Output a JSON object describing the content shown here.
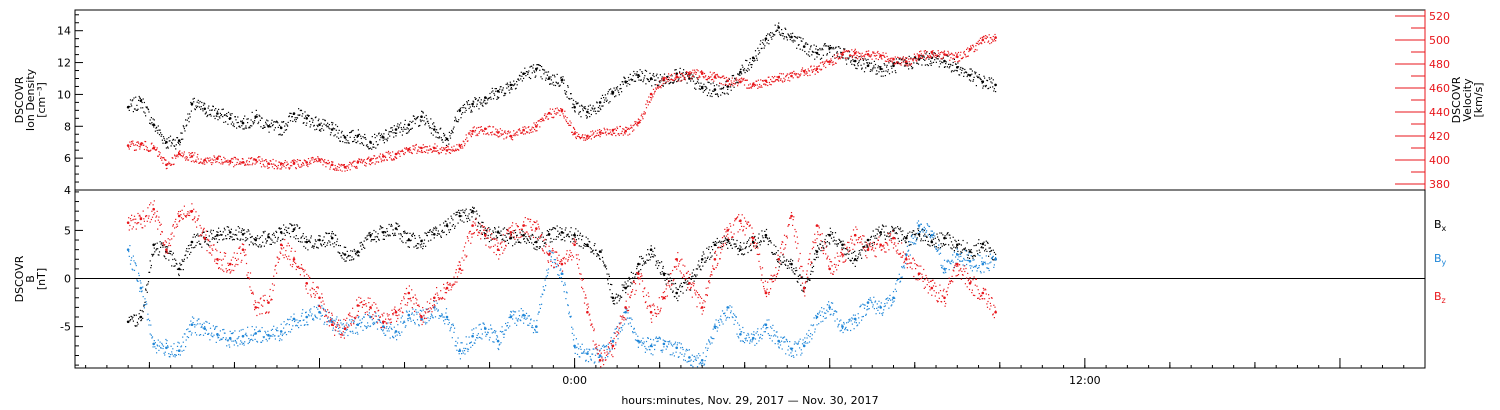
{
  "chart_data": [
    {
      "type": "scatter",
      "panel": "plasma",
      "ylabel_lines": [
        "DSCOVR",
        "Ion Density",
        "[cm⁻³]"
      ],
      "y2label_lines": [
        "DSCOVR",
        "Velocity",
        "[km/s]"
      ],
      "ylim": [
        4,
        15.3
      ],
      "y2lim": [
        375,
        525
      ],
      "yticks": [
        4,
        6,
        8,
        10,
        12,
        14
      ],
      "y2ticks": [
        380,
        400,
        420,
        440,
        460,
        480,
        500,
        520
      ],
      "colors": {
        "density": "#000000",
        "velocity": "#e8161b"
      },
      "series": [
        {
          "key": "density",
          "axis": "left",
          "x": [
            -10.5,
            -10.2,
            -9.9,
            -9.6,
            -9.3,
            -9.0,
            -8.7,
            -8.4,
            -8.1,
            -7.8,
            -7.5,
            -7.2,
            -6.9,
            -6.6,
            -6.3,
            -6.0,
            -5.7,
            -5.4,
            -5.1,
            -4.8,
            -4.5,
            -4.2,
            -3.9,
            -3.6,
            -3.3,
            -3.0,
            -2.7,
            -2.4,
            -2.1,
            -1.8,
            -1.5,
            -1.2,
            -0.9,
            -0.6,
            -0.3,
            0.0,
            0.3,
            0.6,
            0.9,
            1.2,
            1.5,
            1.8,
            2.1,
            2.4,
            2.7,
            3.0,
            3.3,
            3.6,
            3.9,
            4.2,
            4.5,
            4.8,
            5.1,
            5.4,
            5.7,
            6.0,
            6.3,
            6.6,
            6.9,
            7.2,
            7.5,
            7.8,
            8.1,
            8.4,
            8.7,
            9.0,
            9.3,
            9.6,
            9.9
          ],
          "values": [
            9.2,
            9.6,
            8.1,
            7.0,
            7.1,
            9.4,
            9.1,
            8.8,
            8.5,
            8.2,
            8.6,
            8.0,
            7.9,
            8.8,
            8.5,
            8.1,
            7.8,
            7.3,
            7.4,
            7.0,
            7.3,
            7.8,
            8.1,
            8.6,
            7.8,
            7.2,
            9.0,
            9.4,
            9.8,
            10.2,
            10.6,
            11.3,
            11.6,
            11.0,
            10.9,
            9.2,
            8.9,
            9.5,
            10.1,
            10.8,
            11.2,
            11.0,
            10.9,
            11.3,
            11.0,
            10.4,
            10.3,
            10.5,
            11.4,
            12.3,
            13.5,
            14.2,
            13.6,
            13.0,
            12.6,
            12.9,
            12.5,
            12.1,
            11.8,
            11.6,
            11.8,
            12.0,
            12.2,
            12.3,
            12.1,
            11.7,
            11.2,
            10.8,
            10.6
          ]
        },
        {
          "key": "velocity",
          "axis": "right",
          "x": [
            -10.5,
            -10.2,
            -9.9,
            -9.6,
            -9.3,
            -9.0,
            -8.7,
            -8.4,
            -8.1,
            -7.8,
            -7.5,
            -7.2,
            -6.9,
            -6.6,
            -6.3,
            -6.0,
            -5.7,
            -5.4,
            -5.1,
            -4.8,
            -4.5,
            -4.2,
            -3.9,
            -3.6,
            -3.3,
            -3.0,
            -2.7,
            -2.4,
            -2.1,
            -1.8,
            -1.5,
            -1.2,
            -0.9,
            -0.6,
            -0.3,
            0.0,
            0.3,
            0.6,
            0.9,
            1.2,
            1.5,
            1.8,
            2.1,
            2.4,
            2.7,
            3.0,
            3.3,
            3.6,
            3.9,
            4.2,
            4.5,
            4.8,
            5.1,
            5.4,
            5.7,
            6.0,
            6.3,
            6.6,
            6.9,
            7.2,
            7.5,
            7.8,
            8.1,
            8.4,
            8.7,
            9.0,
            9.3,
            9.6,
            9.9
          ],
          "values": [
            412,
            413,
            410,
            396,
            405,
            403,
            400,
            401,
            399,
            398,
            400,
            397,
            397,
            397,
            398,
            400,
            396,
            394,
            398,
            400,
            403,
            405,
            409,
            410,
            410,
            408,
            412,
            424,
            426,
            423,
            420,
            425,
            428,
            439,
            441,
            422,
            420,
            423,
            425,
            424,
            431,
            455,
            468,
            469,
            472,
            472,
            469,
            466,
            465,
            463,
            466,
            469,
            470,
            474,
            476,
            482,
            488,
            489,
            488,
            487,
            484,
            482,
            487,
            490,
            488,
            486,
            492,
            500,
            502
          ]
        }
      ]
    },
    {
      "type": "scatter",
      "panel": "magnetic",
      "ylabel_lines": [
        "DSCOVR",
        "B",
        "[nT]"
      ],
      "ylim": [
        -9.3,
        9.2
      ],
      "yticks": [
        -5,
        0,
        5
      ],
      "zero_line": true,
      "x_axis": {
        "xlim": [
          -11.75,
          20.0
        ],
        "tick_labels": [
          {
            "x": 0,
            "label": "0:00"
          },
          {
            "x": 12,
            "label": "12:00"
          }
        ],
        "xlabel": "hours:minutes, Nov. 29, 2017 — Nov. 30, 2017"
      },
      "legend": [
        "B",
        "B",
        "B"
      ],
      "legend_subscripts": [
        "x",
        "y",
        "z"
      ],
      "colors": {
        "Bx": "#000000",
        "By": "#1f86d8",
        "Bz": "#e8161b"
      },
      "series": [
        {
          "key": "Bx",
          "x": [
            -10.5,
            -10.2,
            -9.9,
            -9.6,
            -9.3,
            -9.0,
            -8.7,
            -8.4,
            -8.1,
            -7.8,
            -7.5,
            -7.2,
            -6.9,
            -6.6,
            -6.3,
            -6.0,
            -5.7,
            -5.4,
            -5.1,
            -4.8,
            -4.5,
            -4.2,
            -3.9,
            -3.6,
            -3.3,
            -3.0,
            -2.7,
            -2.4,
            -2.1,
            -1.8,
            -1.5,
            -1.2,
            -0.9,
            -0.6,
            -0.3,
            0.0,
            0.3,
            0.6,
            0.9,
            1.2,
            1.5,
            1.8,
            2.1,
            2.4,
            2.7,
            3.0,
            3.3,
            3.6,
            3.9,
            4.2,
            4.5,
            4.8,
            5.1,
            5.4,
            5.7,
            6.0,
            6.3,
            6.6,
            6.9,
            7.2,
            7.5,
            7.8,
            8.1,
            8.4,
            8.7,
            9.0,
            9.3,
            9.6,
            9.9
          ],
          "values": [
            -4.5,
            -4.0,
            3.5,
            2.8,
            1.0,
            3.8,
            4.2,
            4.5,
            4.8,
            4.6,
            4.0,
            4.3,
            4.8,
            5.1,
            3.8,
            4.0,
            4.2,
            2.5,
            2.8,
            4.5,
            4.8,
            5.2,
            4.0,
            3.9,
            4.6,
            5.5,
            6.5,
            7.0,
            4.6,
            4.8,
            4.2,
            4.5,
            3.8,
            4.6,
            4.8,
            4.5,
            3.5,
            2.8,
            -2.0,
            -1.0,
            1.5,
            3.0,
            0.5,
            -1.5,
            -0.5,
            2.0,
            3.5,
            4.0,
            3.0,
            3.8,
            4.5,
            2.0,
            1.5,
            -1.0,
            2.8,
            4.5,
            3.5,
            2.0,
            4.0,
            4.8,
            5.0,
            4.2,
            4.6,
            3.8,
            4.2,
            3.5,
            2.8,
            3.6,
            2.0
          ]
        },
        {
          "key": "By",
          "x": [
            -10.5,
            -10.2,
            -9.9,
            -9.6,
            -9.3,
            -9.0,
            -8.7,
            -8.4,
            -8.1,
            -7.8,
            -7.5,
            -7.2,
            -6.9,
            -6.6,
            -6.3,
            -6.0,
            -5.7,
            -5.4,
            -5.1,
            -4.8,
            -4.5,
            -4.2,
            -3.9,
            -3.6,
            -3.3,
            -3.0,
            -2.7,
            -2.4,
            -2.1,
            -1.8,
            -1.5,
            -1.2,
            -0.9,
            -0.6,
            -0.3,
            0.0,
            0.3,
            0.6,
            0.9,
            1.2,
            1.5,
            1.8,
            2.1,
            2.4,
            2.7,
            3.0,
            3.3,
            3.6,
            3.9,
            4.2,
            4.5,
            4.8,
            5.1,
            5.4,
            5.7,
            6.0,
            6.3,
            6.6,
            6.9,
            7.2,
            7.5,
            7.8,
            8.1,
            8.4,
            8.7,
            9.0,
            9.3,
            9.6,
            9.9
          ],
          "values": [
            3.0,
            -1.0,
            -6.8,
            -7.2,
            -7.5,
            -4.8,
            -5.2,
            -5.8,
            -6.2,
            -6.0,
            -5.7,
            -5.9,
            -5.5,
            -4.2,
            -4.0,
            -3.5,
            -4.5,
            -5.2,
            -4.8,
            -4.0,
            -5.0,
            -5.5,
            -3.8,
            -4.2,
            -3.0,
            -4.0,
            -7.5,
            -6.0,
            -5.2,
            -6.5,
            -4.0,
            -3.8,
            -5.0,
            2.5,
            0.5,
            -7.0,
            -7.8,
            -8.0,
            -6.5,
            -3.5,
            -6.5,
            -7.0,
            -6.8,
            -7.2,
            -8.2,
            -8.5,
            -5.0,
            -3.0,
            -5.8,
            -6.2,
            -4.8,
            -6.5,
            -7.3,
            -7.0,
            -4.0,
            -3.0,
            -5.0,
            -4.2,
            -2.5,
            -3.0,
            -2.0,
            2.5,
            5.5,
            4.5,
            1.0,
            2.5,
            1.8,
            1.5,
            2.0
          ]
        },
        {
          "key": "Bz",
          "x": [
            -10.5,
            -10.2,
            -9.9,
            -9.6,
            -9.3,
            -9.0,
            -8.7,
            -8.4,
            -8.1,
            -7.8,
            -7.5,
            -7.2,
            -6.9,
            -6.6,
            -6.3,
            -6.0,
            -5.7,
            -5.4,
            -5.1,
            -4.8,
            -4.5,
            -4.2,
            -3.9,
            -3.6,
            -3.3,
            -3.0,
            -2.7,
            -2.4,
            -2.1,
            -1.8,
            -1.5,
            -1.2,
            -0.9,
            -0.6,
            -0.3,
            0.0,
            0.3,
            0.6,
            0.9,
            1.2,
            1.5,
            1.8,
            2.1,
            2.4,
            2.7,
            3.0,
            3.3,
            3.6,
            3.9,
            4.2,
            4.5,
            4.8,
            5.1,
            5.4,
            5.7,
            6.0,
            6.3,
            6.6,
            6.9,
            7.2,
            7.5,
            7.8,
            8.1,
            8.4,
            8.7,
            9.0,
            9.3,
            9.6,
            9.9
          ],
          "values": [
            5.8,
            6.2,
            7.2,
            3.0,
            6.5,
            7.0,
            4.2,
            2.0,
            1.5,
            3.0,
            -3.0,
            -2.5,
            3.5,
            2.0,
            -0.5,
            -2.0,
            -4.8,
            -5.2,
            -2.8,
            -3.0,
            -4.5,
            -3.5,
            -1.5,
            -4.0,
            -2.0,
            -1.0,
            1.0,
            5.5,
            4.5,
            3.0,
            4.8,
            5.5,
            5.2,
            2.5,
            1.5,
            3.5,
            -3.5,
            -8.5,
            -7.0,
            -3.0,
            0.5,
            -3.5,
            -2.0,
            2.0,
            -0.5,
            -3.0,
            2.0,
            5.0,
            6.0,
            4.2,
            -1.5,
            2.0,
            6.5,
            -1.0,
            5.5,
            1.0,
            2.5,
            4.5,
            3.0,
            3.5,
            4.2,
            2.0,
            0.5,
            -1.0,
            -2.0,
            1.5,
            -0.5,
            -1.5,
            -3.5
          ]
        }
      ]
    }
  ]
}
